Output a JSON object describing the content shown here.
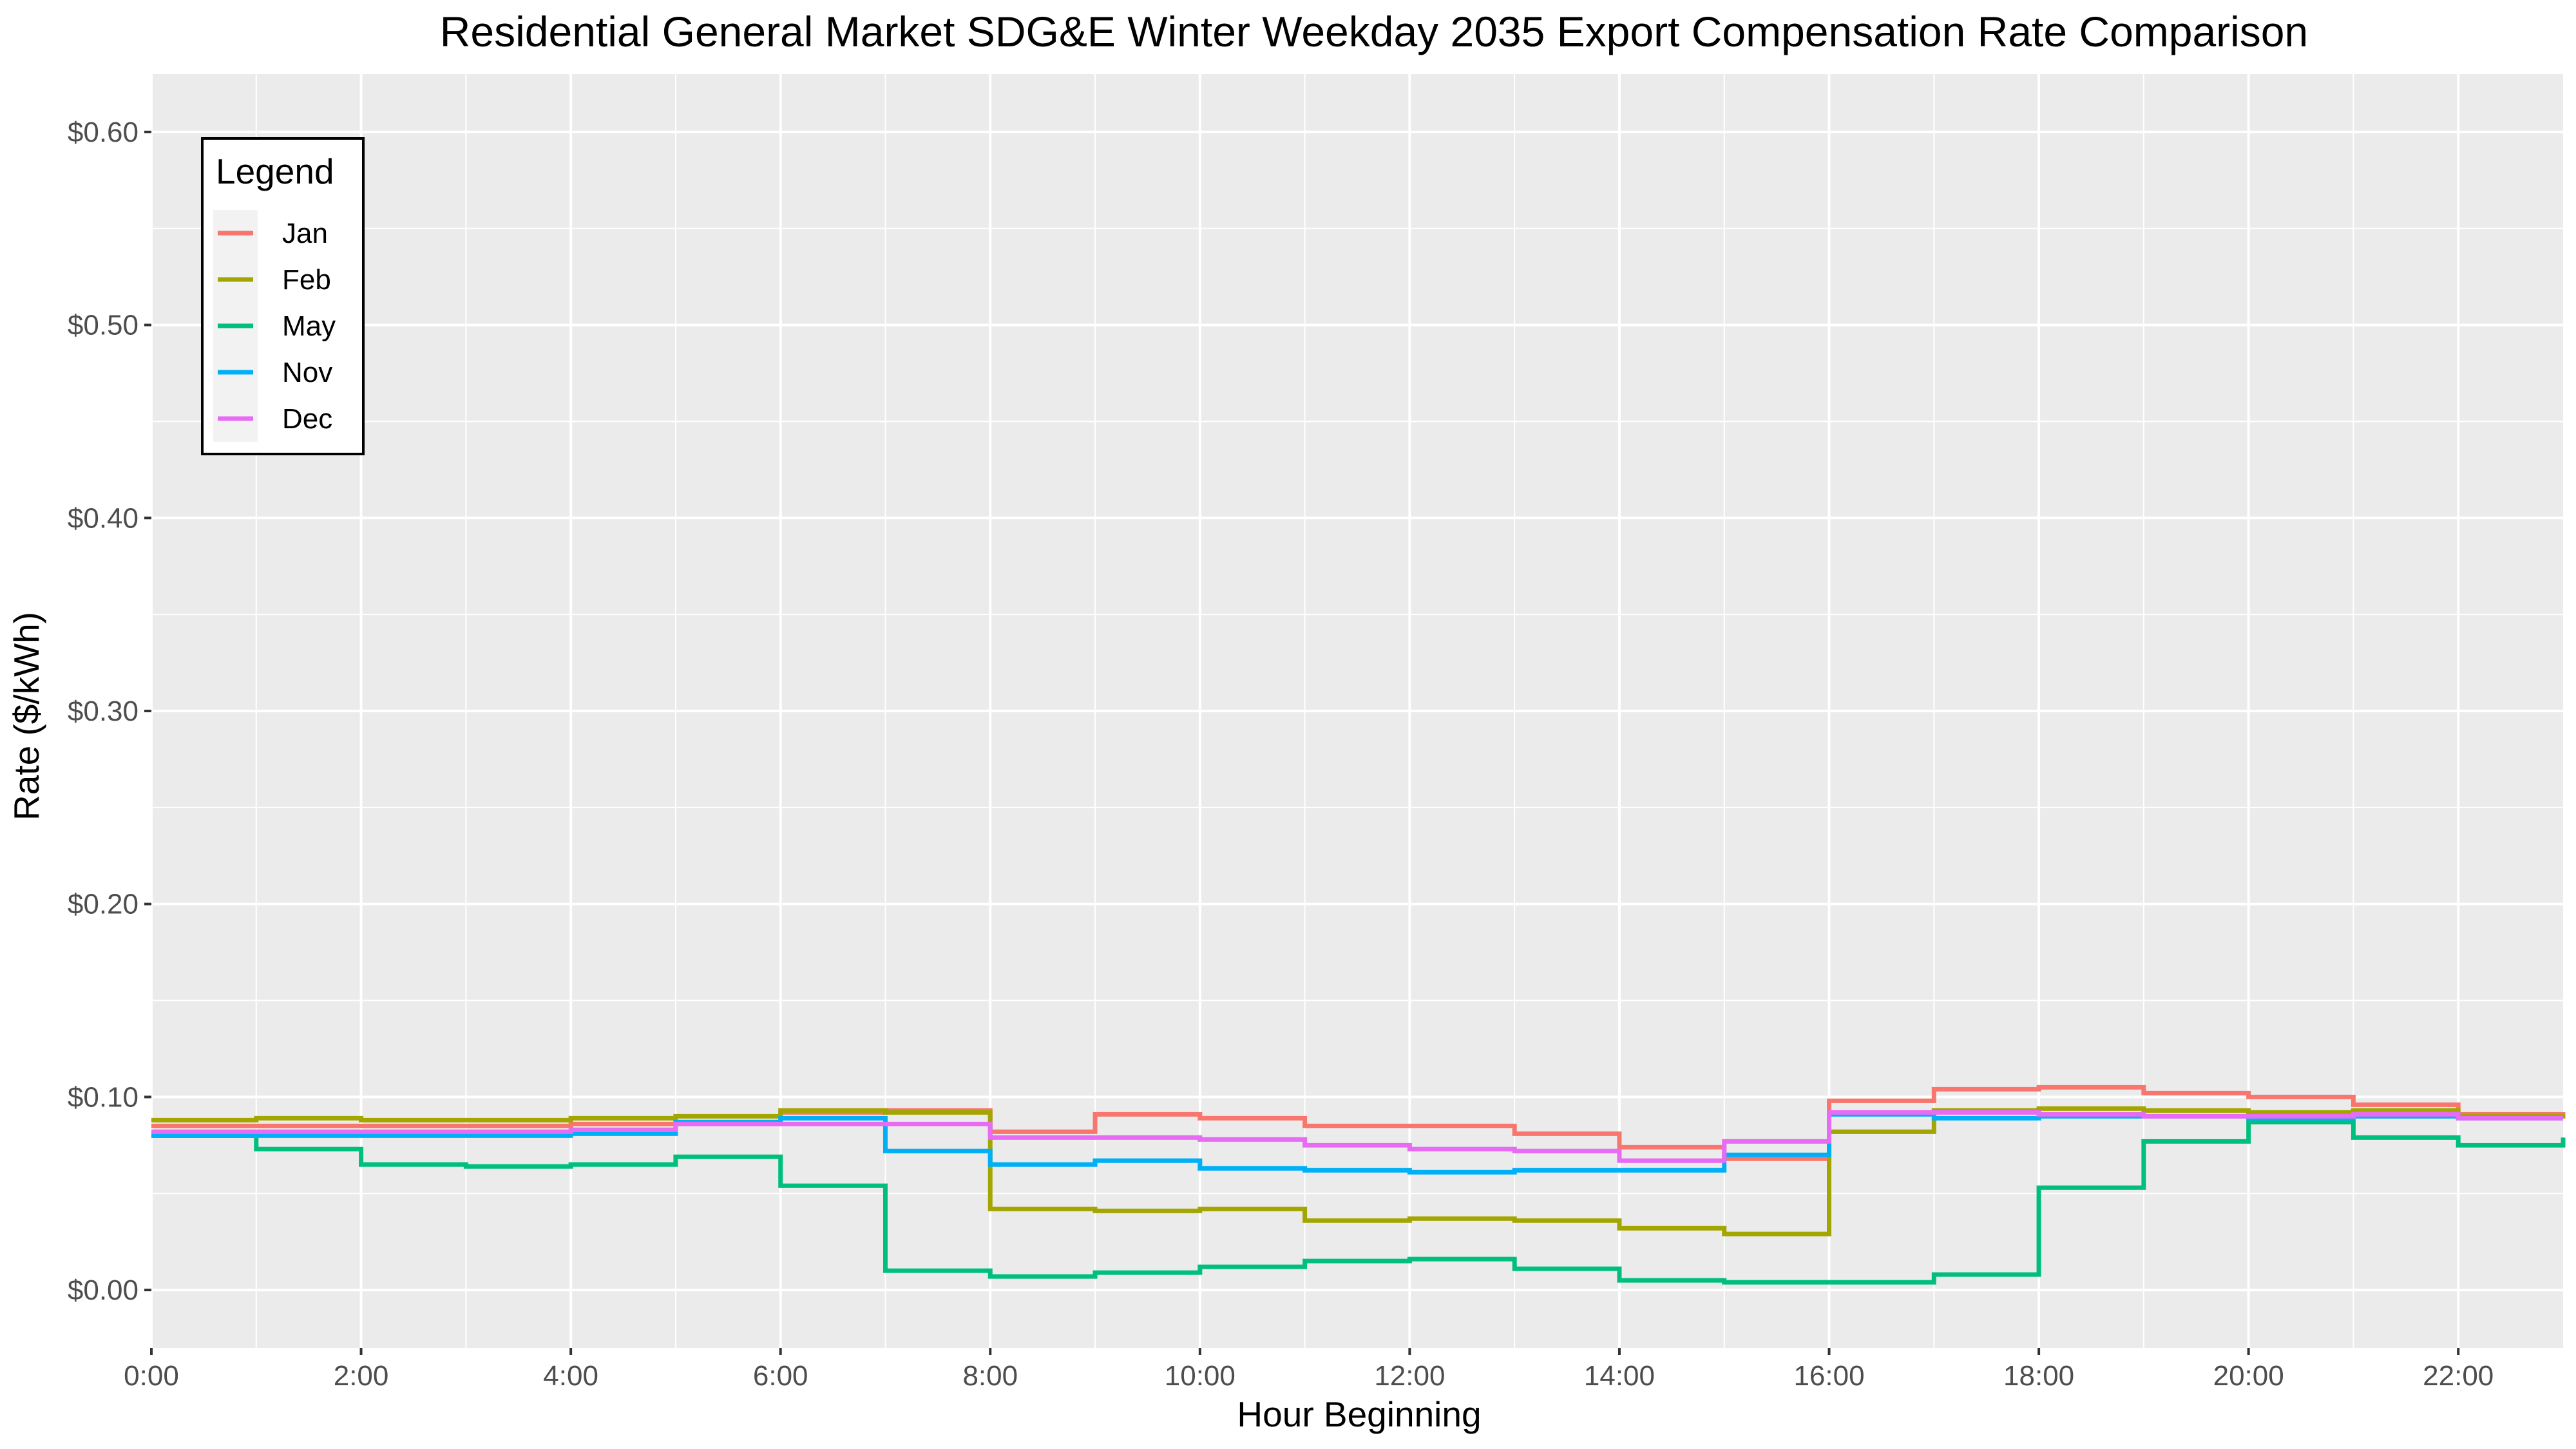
{
  "chart_data": {
    "type": "line",
    "step": "hv",
    "title": "Residential General Market SDG&E Winter Weekday 2035 Export Compensation Rate Comparison",
    "xlabel": "Hour Beginning",
    "ylabel": "Rate ($/kWh)",
    "xlim": [
      0,
      23
    ],
    "ylim": [
      -0.03,
      0.63
    ],
    "grid": true,
    "legend_placement": "top-left",
    "legend_title": "Legend",
    "x_ticks": [
      0,
      2,
      4,
      6,
      8,
      10,
      12,
      14,
      16,
      18,
      20,
      22
    ],
    "x_tick_labels": [
      "0:00",
      "2:00",
      "4:00",
      "6:00",
      "8:00",
      "10:00",
      "12:00",
      "14:00",
      "16:00",
      "18:00",
      "20:00",
      "22:00"
    ],
    "y_ticks": [
      0,
      0.1,
      0.2,
      0.3,
      0.4,
      0.5,
      0.6
    ],
    "y_tick_labels": [
      "$0.00",
      "$0.10",
      "$0.20",
      "$0.30",
      "$0.40",
      "$0.50",
      "$0.60"
    ],
    "x": [
      0,
      1,
      2,
      3,
      4,
      5,
      6,
      7,
      8,
      9,
      10,
      11,
      12,
      13,
      14,
      15,
      16,
      17,
      18,
      19,
      20,
      21,
      22,
      23
    ],
    "series": [
      {
        "name": "Jan",
        "color": "#F8766D",
        "values": [
          0.085,
          0.085,
          0.085,
          0.085,
          0.086,
          0.087,
          0.092,
          0.093,
          0.082,
          0.091,
          0.089,
          0.085,
          0.085,
          0.081,
          0.074,
          0.068,
          0.098,
          0.104,
          0.105,
          0.102,
          0.1,
          0.096,
          0.091,
          0.089
        ]
      },
      {
        "name": "Feb",
        "color": "#A3A500",
        "values": [
          0.088,
          0.089,
          0.088,
          0.088,
          0.089,
          0.09,
          0.093,
          0.092,
          0.042,
          0.041,
          0.042,
          0.036,
          0.037,
          0.036,
          0.032,
          0.029,
          0.082,
          0.093,
          0.094,
          0.093,
          0.092,
          0.093,
          0.09,
          0.091
        ]
      },
      {
        "name": "May",
        "color": "#00BF7D",
        "values": [
          0.08,
          0.073,
          0.065,
          0.064,
          0.065,
          0.069,
          0.054,
          0.01,
          0.007,
          0.009,
          0.012,
          0.015,
          0.016,
          0.011,
          0.005,
          0.004,
          0.004,
          0.008,
          0.053,
          0.077,
          0.087,
          0.079,
          0.075,
          0.079
        ]
      },
      {
        "name": "Nov",
        "color": "#00B0F6",
        "values": [
          0.08,
          0.08,
          0.08,
          0.08,
          0.081,
          0.087,
          0.089,
          0.072,
          0.065,
          0.067,
          0.063,
          0.062,
          0.061,
          0.062,
          0.062,
          0.07,
          0.091,
          0.089,
          0.09,
          0.09,
          0.089,
          0.09,
          0.089,
          0.089
        ]
      },
      {
        "name": "Dec",
        "color": "#E76BF3",
        "values": [
          0.082,
          0.082,
          0.082,
          0.082,
          0.083,
          0.086,
          0.086,
          0.086,
          0.079,
          0.079,
          0.078,
          0.075,
          0.073,
          0.072,
          0.067,
          0.077,
          0.092,
          0.092,
          0.091,
          0.09,
          0.09,
          0.091,
          0.089,
          0.089
        ]
      }
    ]
  }
}
